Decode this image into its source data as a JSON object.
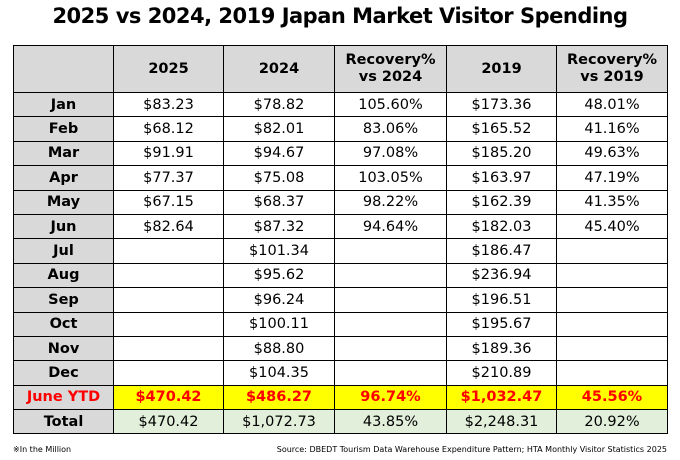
{
  "title": "2025 vs 2024, 2019 Japan Market Visitor Spending",
  "columns": [
    {
      "line1": "2025",
      "line2": ""
    },
    {
      "line1": "2024",
      "line2": ""
    },
    {
      "line1": "Recovery%",
      "line2": "vs 2024"
    },
    {
      "line1": "2019",
      "line2": ""
    },
    {
      "line1": "Recovery%",
      "line2": "vs 2019"
    }
  ],
  "rows": [
    {
      "label": "Jan",
      "cells": [
        "$83.23",
        "$78.82",
        "105.60%",
        "$173.36",
        "48.01%"
      ]
    },
    {
      "label": "Feb",
      "cells": [
        "$68.12",
        "$82.01",
        "83.06%",
        "$165.52",
        "41.16%"
      ]
    },
    {
      "label": "Mar",
      "cells": [
        "$91.91",
        "$94.67",
        "97.08%",
        "$185.20",
        "49.63%"
      ]
    },
    {
      "label": "Apr",
      "cells": [
        "$77.37",
        "$75.08",
        "103.05%",
        "$163.97",
        "47.19%"
      ]
    },
    {
      "label": "May",
      "cells": [
        "$67.15",
        "$68.37",
        "98.22%",
        "$162.39",
        "41.35%"
      ]
    },
    {
      "label": "Jun",
      "cells": [
        "$82.64",
        "$87.32",
        "94.64%",
        "$182.03",
        "45.40%"
      ]
    },
    {
      "label": "Jul",
      "cells": [
        "",
        "$101.34",
        "",
        "$186.47",
        ""
      ]
    },
    {
      "label": "Aug",
      "cells": [
        "",
        "$95.62",
        "",
        "$236.94",
        ""
      ]
    },
    {
      "label": "Sep",
      "cells": [
        "",
        "$96.24",
        "",
        "$196.51",
        ""
      ]
    },
    {
      "label": "Oct",
      "cells": [
        "",
        "$100.11",
        "",
        "$195.67",
        ""
      ]
    },
    {
      "label": "Nov",
      "cells": [
        "",
        "$88.80",
        "",
        "$189.36",
        ""
      ]
    },
    {
      "label": "Dec",
      "cells": [
        "",
        "$104.35",
        "",
        "$210.89",
        ""
      ]
    }
  ],
  "ytd": {
    "label": "June YTD",
    "cells": [
      "$470.42",
      "$486.27",
      "96.74%",
      "$1,032.47",
      "45.56%"
    ]
  },
  "total": {
    "label": "Total",
    "cells": [
      "$470.42",
      "$1,072.73",
      "43.85%",
      "$2,248.31",
      "20.92%"
    ]
  },
  "footnote": "※In the Million",
  "source": "Source: DBEDT Tourism Data Warehouse Expenditure Pattern; HTA Monthly Visitor Statistics 2025",
  "colors": {
    "header_bg": "#d9d9d9",
    "ytd_bg": "#ffff00",
    "ytd_text": "#ff0000",
    "total_bg": "#e2efda"
  }
}
